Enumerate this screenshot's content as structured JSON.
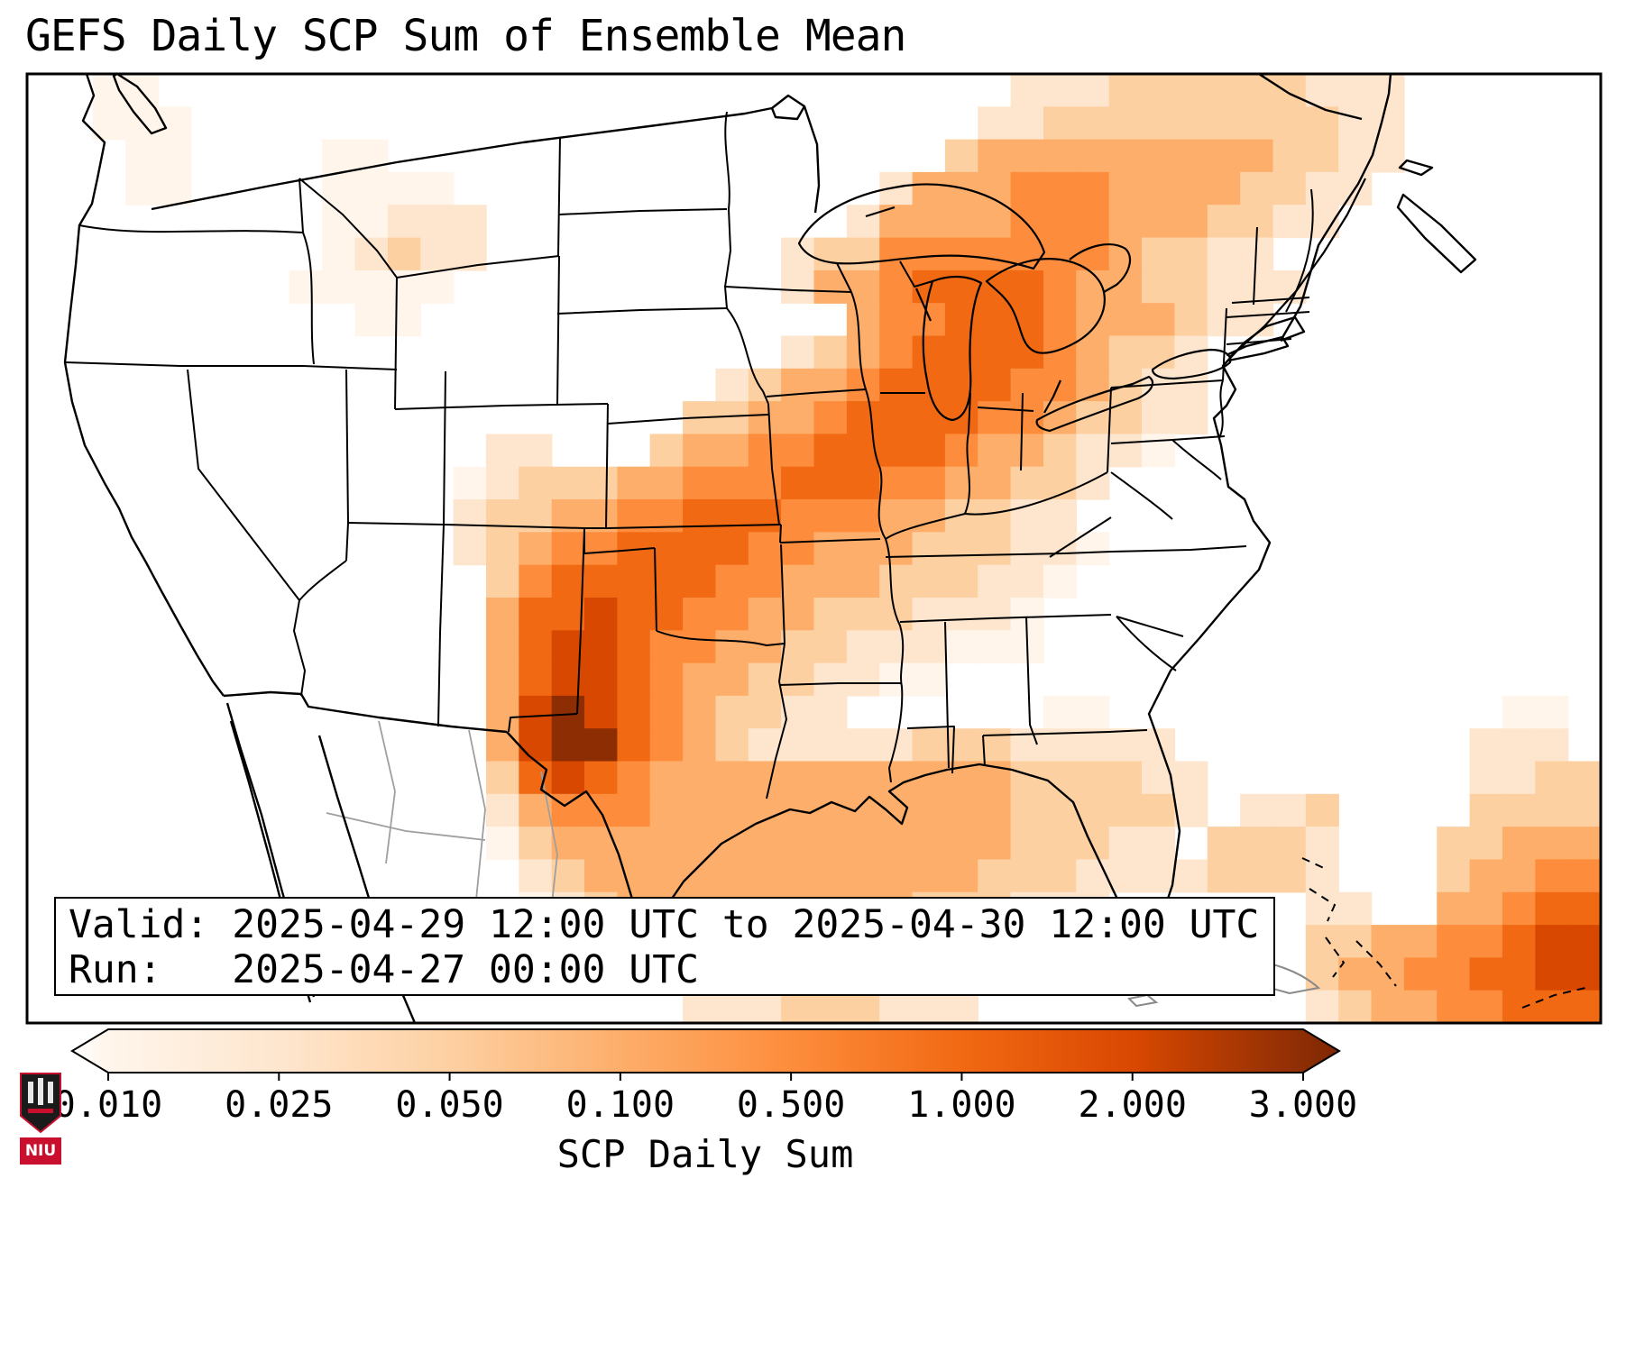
{
  "title": "GEFS Daily SCP Sum of Ensemble Mean",
  "info_box": {
    "valid_line": "Valid: 2025-04-29 12:00 UTC to 2025-04-30 12:00 UTC",
    "run_line": "Run:   2025-04-27 00:00 UTC"
  },
  "colorbar": {
    "label": "SCP Daily Sum",
    "tick_labels": [
      "0.010",
      "0.025",
      "0.050",
      "0.100",
      "0.500",
      "1.000",
      "2.000",
      "3.000"
    ],
    "under_color": "#ffffff",
    "over_color": "#7f2704"
  },
  "logo": {
    "text": "NIU",
    "color": "#c8102e"
  },
  "map": {
    "frame_color": "#000000",
    "state_line_color": "#000000",
    "mexico_line_color": "#9f9f9f",
    "cuba_line_color": "#8a8a8a"
  },
  "chart_data": {
    "type": "heatmap",
    "title": "GEFS Daily SCP Sum of Ensemble Mean",
    "variable": "SCP Daily Sum",
    "valid": "2025-04-29 12:00 UTC to 2025-04-30 12:00 UTC",
    "run": "2025-04-27 00:00 UTC",
    "levels": [
      0.01,
      0.025,
      0.05,
      0.1,
      0.5,
      1.0,
      2.0,
      3.0
    ],
    "level_colors": [
      "#ffffff",
      "#fff5eb",
      "#fee6ce",
      "#fdd0a2",
      "#fdae6b",
      "#fd8d3c",
      "#f16913",
      "#d94801",
      "#8c2d04"
    ],
    "legend_position": "bottom",
    "grid": {
      "cols": 48,
      "rows": 29,
      "cell_encoding": "digit = index into level bins (1=0.01-0.025 ... 8=>3), dot = below 0.01",
      "rows_data": [
        "..11..........................222333333222......",
        "..111........................2233333333322......",
        "...11....11.................34444444443322......",
        "...11....1111.............244455544443322.......",
        ".........11222...........244445554443322........",
        ".........12322.........233555555543322..........",
        "........11111..........2445666654433222.........",
        "..........11.............4556665444322..........",
        ".......................2345666654332............",
        ".....................234456666554322............",
        "....................3344566665543322............",
        "..............22...3445566665443221.............",
        ".............12333445556665544332...............",
        ".............2334455666555443322................",
        ".............23455666655444333221...............",
        "..............356666655444333221................",
        "..............46676655443332221.................",
        "..............46776554433222111.................",
        "..............46776544332211....................",
        "..............47876543322......11............11.",
        "..............478865432222233322222.........222.",
        "..............3676544444444444333322........2233",
        "..............2455544444444444333332.223....3333",
        "..............134444444444444433322.3332...33444",
        "...............2344444444444433322223332...34455",
        "...............123444444444333222......22..44566",
        "................23333332222............334455677",
        ".................22222.................344556677",
        "....................222333222..........234455666"
      ]
    }
  }
}
